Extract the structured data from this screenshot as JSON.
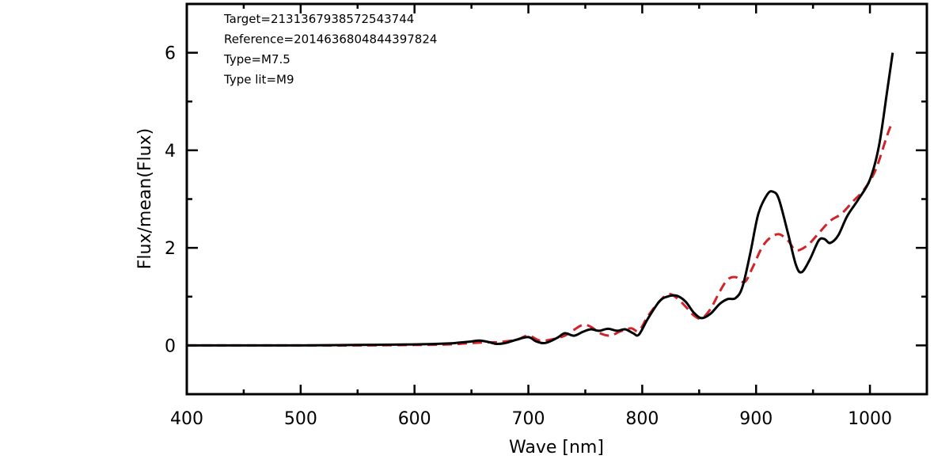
{
  "chart_data": {
    "type": "line",
    "xlabel": "Wave [nm]",
    "ylabel": "Flux/mean(Flux)",
    "xlim": [
      400,
      1050
    ],
    "ylim": [
      -1,
      7
    ],
    "x_ticks": [
      400,
      500,
      600,
      700,
      800,
      900,
      1000
    ],
    "y_ticks": [
      0,
      2,
      4,
      6
    ],
    "annotations": [
      "Target=2131367938572543744",
      "Reference=2014636804844397824",
      "Type=M7.5",
      "Type lit=M9"
    ],
    "series": [
      {
        "color": "#000000",
        "style": "solid",
        "x": [
          400,
          450,
          500,
          550,
          600,
          630,
          640,
          650,
          657,
          665,
          672,
          680,
          690,
          700,
          707,
          715,
          725,
          732,
          740,
          748,
          755,
          762,
          770,
          778,
          785,
          792,
          797,
          805,
          815,
          822,
          830,
          838,
          845,
          852,
          860,
          868,
          875,
          882,
          888,
          895,
          902,
          910,
          915,
          920,
          928,
          935,
          940,
          947,
          955,
          960,
          965,
          972,
          980,
          990,
          1000,
          1008,
          1015,
          1020
        ],
        "y": [
          0.0,
          0.0,
          0.0,
          0.01,
          0.02,
          0.04,
          0.06,
          0.08,
          0.1,
          0.07,
          0.03,
          0.05,
          0.12,
          0.17,
          0.08,
          0.05,
          0.15,
          0.25,
          0.2,
          0.28,
          0.33,
          0.3,
          0.34,
          0.3,
          0.33,
          0.25,
          0.22,
          0.55,
          0.9,
          1.0,
          1.02,
          0.9,
          0.68,
          0.56,
          0.65,
          0.85,
          0.95,
          0.97,
          1.2,
          1.9,
          2.7,
          3.1,
          3.15,
          3.0,
          2.3,
          1.65,
          1.5,
          1.75,
          2.15,
          2.18,
          2.1,
          2.25,
          2.65,
          3.0,
          3.4,
          4.1,
          5.2,
          6.0
        ]
      },
      {
        "color": "#d1232a",
        "style": "dashed",
        "x": [
          400,
          450,
          500,
          550,
          600,
          630,
          645,
          660,
          675,
          690,
          700,
          710,
          720,
          732,
          740,
          748,
          755,
          763,
          772,
          780,
          790,
          797,
          805,
          815,
          823,
          830,
          838,
          845,
          852,
          860,
          868,
          875,
          882,
          890,
          897,
          905,
          912,
          920,
          928,
          935,
          945,
          955,
          965,
          975,
          985,
          995,
          1005,
          1015,
          1020
        ],
        "y": [
          0.0,
          0.0,
          0.0,
          0.0,
          0.01,
          0.02,
          0.04,
          0.06,
          0.07,
          0.12,
          0.2,
          0.1,
          0.12,
          0.2,
          0.32,
          0.42,
          0.38,
          0.25,
          0.2,
          0.28,
          0.35,
          0.3,
          0.6,
          0.9,
          1.05,
          0.98,
          0.8,
          0.62,
          0.55,
          0.75,
          1.1,
          1.35,
          1.4,
          1.3,
          1.6,
          2.0,
          2.2,
          2.28,
          2.15,
          1.95,
          2.05,
          2.3,
          2.55,
          2.7,
          2.95,
          3.2,
          3.6,
          4.3,
          4.6
        ]
      }
    ]
  }
}
